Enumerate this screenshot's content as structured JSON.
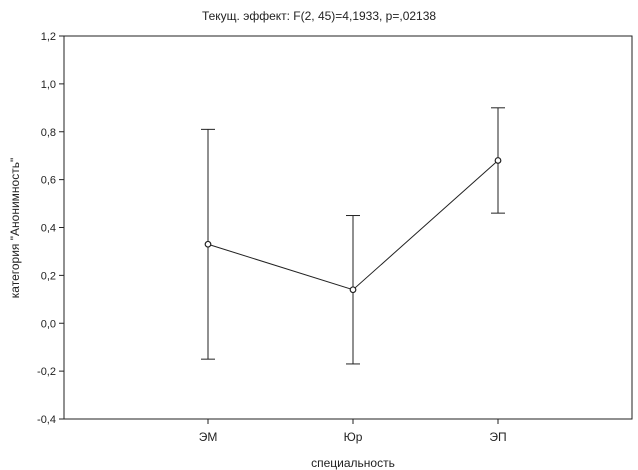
{
  "chart_data": {
    "type": "line",
    "title": "Текущ.  эффект: F(2, 45)=4,1933, p=,02138",
    "xlabel": "специальность",
    "ylabel": "категория \"Анонимность\"",
    "categories": [
      "ЭМ",
      "Юр",
      "ЭП"
    ],
    "ylim": [
      -0.4,
      1.2
    ],
    "yticks": [
      "-0,4",
      "-0,2",
      "0,0",
      "0,2",
      "0,4",
      "0,6",
      "0,8",
      "1,0",
      "1,2"
    ],
    "grid": false,
    "series": [
      {
        "values": [
          0.33,
          0.14,
          0.68
        ],
        "lower": [
          -0.15,
          -0.17,
          0.46
        ],
        "upper": [
          0.81,
          0.45,
          0.9
        ]
      }
    ]
  }
}
